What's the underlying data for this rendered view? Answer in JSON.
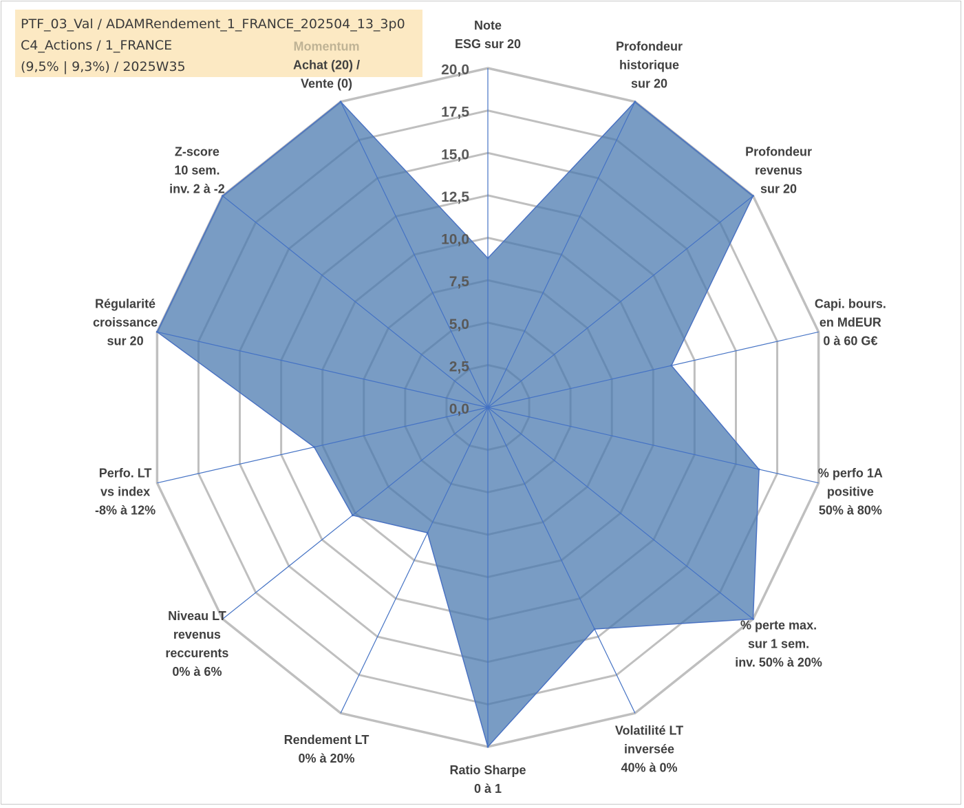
{
  "info": {
    "line1": "PTF_03_Val / ADAMRendement_1_FRANCE_202504_13_3p0",
    "line2": "C4_Actions / 1_FRANCE",
    "line3": "(9,5% | 9,3%) / 2025W35"
  },
  "chart_data": {
    "type": "radar",
    "title": "",
    "rlim": [
      0,
      20
    ],
    "tick_values": [
      0,
      2.5,
      5,
      7.5,
      10,
      12.5,
      15,
      17.5,
      20
    ],
    "tick_labels": [
      "0,0",
      "2,5",
      "5,0",
      "7,5",
      "10,0",
      "12,5",
      "15,0",
      "17,5",
      "20,0"
    ],
    "grid": true,
    "categories": [
      {
        "label": [
          "Note",
          "ESG sur 20"
        ]
      },
      {
        "label": [
          "Profondeur",
          "historique",
          "sur 20"
        ]
      },
      {
        "label": [
          "Profondeur",
          "revenus",
          "sur 20"
        ]
      },
      {
        "label": [
          "Capi. bours.",
          "en MdEUR",
          "0 à 60 G€"
        ]
      },
      {
        "label": [
          "% perfo 1A",
          "positive",
          "50% à 80%"
        ]
      },
      {
        "label": [
          "% perte max.",
          "sur 1 sem.",
          "inv. 50% à 20%"
        ]
      },
      {
        "label": [
          "Volatilité LT",
          "inversée",
          "40% à 0%"
        ]
      },
      {
        "label": [
          "Ratio Sharpe",
          "0 à 1"
        ]
      },
      {
        "label": [
          "Rendement LT",
          "0% à 20%"
        ]
      },
      {
        "label": [
          "Niveau LT",
          "revenus",
          "reccurents",
          "0% à 6%"
        ]
      },
      {
        "label": [
          "Perfo. LT",
          "vs index",
          "-8% à 12%"
        ]
      },
      {
        "label": [
          "Régularité",
          "croissance",
          "sur 20"
        ]
      },
      {
        "label": [
          "Z-score",
          "10 sem.",
          "inv. 2 à -2"
        ]
      },
      {
        "label": [
          "Momentum",
          "Achat (20) /",
          "Vente (0)"
        ]
      }
    ],
    "series": [
      {
        "values": [
          8.8,
          20,
          20,
          11.1,
          16.4,
          20,
          14.5,
          20,
          8.2,
          10.2,
          10.5,
          20,
          20,
          20
        ],
        "color": "#4a7ab0",
        "fill_opacity": 0.74
      }
    ],
    "colors": {
      "grid": "#bfbfbf",
      "spoke": "#4472c4",
      "series_line": "#4a72c2"
    }
  }
}
